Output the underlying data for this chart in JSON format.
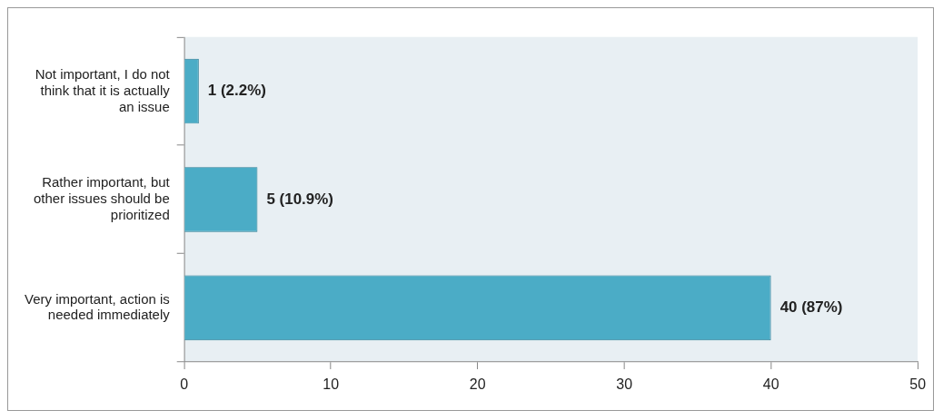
{
  "chart_data": {
    "type": "bar",
    "orientation": "horizontal",
    "categories": [
      "Not important, I do not think that it is actually an issue",
      "Rather important, but other issues should be prioritized",
      "Very important, action is needed immediately"
    ],
    "values": [
      1,
      5,
      40
    ],
    "value_labels": [
      "1 (2.2%)",
      "5 (10.9%)",
      "40 (87%)"
    ],
    "color": "#4bacc6",
    "xlim": [
      0,
      50
    ],
    "xticks": [
      0,
      10,
      20,
      30,
      40,
      50
    ],
    "grid": false,
    "legend": false
  }
}
